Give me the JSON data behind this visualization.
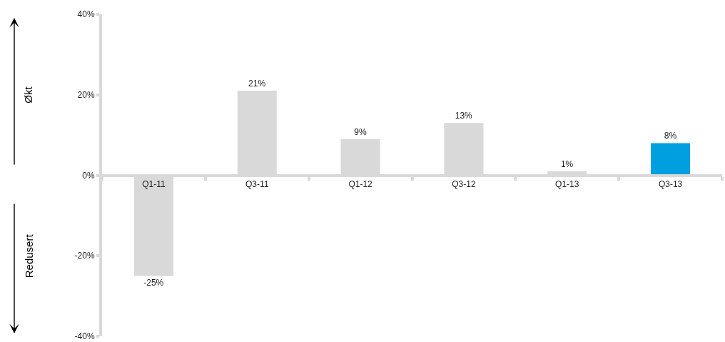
{
  "chart_data": {
    "type": "bar",
    "categories": [
      "Q1-11",
      "Q3-11",
      "Q1-12",
      "Q3-12",
      "Q1-13",
      "Q3-13"
    ],
    "values": [
      -25,
      21,
      9,
      13,
      1,
      8
    ],
    "value_labels": [
      "-25%",
      "21%",
      "9%",
      "13%",
      "1%",
      "8%"
    ],
    "colors": [
      "#d9d9d9",
      "#d9d9d9",
      "#d9d9d9",
      "#d9d9d9",
      "#d9d9d9",
      "#009fe0"
    ],
    "ylim": [
      -40,
      40
    ],
    "yticks": [
      {
        "value": -40,
        "label": "-40%"
      },
      {
        "value": -20,
        "label": "-20%"
      },
      {
        "value": 0,
        "label": "0%"
      },
      {
        "value": 20,
        "label": "20%"
      },
      {
        "value": 40,
        "label": "40%"
      }
    ],
    "annotations": [
      "Økt",
      "Redusert"
    ]
  }
}
